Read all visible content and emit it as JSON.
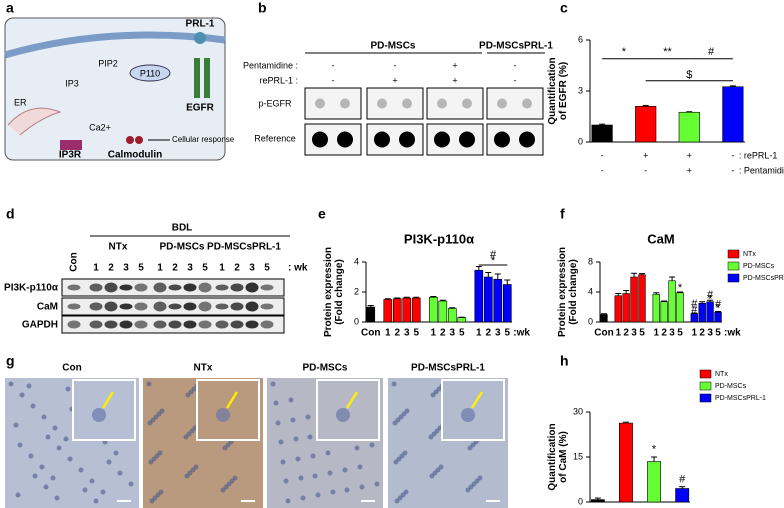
{
  "panel_labels": [
    "a",
    "b",
    "c",
    "d",
    "e",
    "f",
    "g",
    "h"
  ],
  "diagram_a": {
    "labels": [
      "PRL-1",
      "P110",
      "EGFR",
      "PIP2",
      "IP3",
      "ER",
      "Ca2+",
      "IP3R",
      "Calmodulin",
      "Cellular response"
    ]
  },
  "blot_b": {
    "groups": [
      "PD-MSCs",
      "PD-MSCsPRL-1"
    ],
    "conditions": [
      {
        "name": "Pentamidine :",
        "signs": [
          "-",
          "-",
          "+",
          "-"
        ]
      },
      {
        "name": "rePRL-1 :",
        "signs": [
          "-",
          "+",
          "+",
          "-"
        ]
      }
    ],
    "rows": [
      "p-EGFR",
      "Reference"
    ]
  },
  "blot_d": {
    "header": "BDL",
    "con": "Con",
    "groups": [
      "NTx",
      "PD-MSCs",
      "PD-MSCsPRL-1"
    ],
    "lanes": [
      "1",
      "2",
      "3",
      "5"
    ],
    "unit": ": wk",
    "rows": [
      "PI3K-p110α",
      "CaM",
      "GAPDH"
    ]
  },
  "images_g": {
    "titles": [
      "Con",
      "NTx",
      "PD-MSCs",
      "PD-MSCsPRL-1"
    ]
  },
  "chart_data": [
    {
      "type": "bar",
      "ylabel": [
        "Quantification",
        "of EGFR (%)"
      ],
      "ylim": [
        0,
        6
      ],
      "yticks": [
        0,
        3,
        6
      ],
      "values": [
        1.0,
        2.1,
        1.75,
        3.25
      ],
      "errors": [
        0.05,
        0.05,
        0.03,
        0.05
      ],
      "colors": [
        "#000000",
        "#ff0000",
        "#66ff33",
        "#0000ff"
      ],
      "conditions": [
        {
          "name": ": rePRL-1",
          "signs": [
            "-",
            "+",
            "+",
            "-"
          ]
        },
        {
          "name": ": Pentamidine",
          "signs": [
            "-",
            "-",
            "+",
            "-"
          ]
        }
      ],
      "annotations": [
        "*",
        "**",
        "#",
        "$"
      ]
    },
    {
      "type": "bar",
      "title": "PI3K-p110α",
      "ylabel": [
        "Protein expression",
        "(Fold change)"
      ],
      "ylim": [
        0,
        4
      ],
      "yticks": [
        0,
        2,
        4
      ],
      "categories": [
        "Con",
        "1",
        "2",
        "3",
        "5",
        "1",
        "2",
        "3",
        "5",
        "1",
        "2",
        "3",
        "5"
      ],
      "x_unit": ":wk",
      "values": [
        1.0,
        1.5,
        1.55,
        1.6,
        1.6,
        1.65,
        1.4,
        0.9,
        0.3,
        3.45,
        3.0,
        2.85,
        2.5
      ],
      "errors": [
        0.1,
        0.05,
        0.05,
        0.05,
        0.05,
        0.05,
        0.05,
        0.05,
        0.02,
        0.25,
        0.3,
        0.35,
        0.3
      ],
      "colors": [
        "#000000",
        "#ff0000",
        "#ff0000",
        "#ff0000",
        "#ff0000",
        "#66ff33",
        "#66ff33",
        "#66ff33",
        "#66ff33",
        "#0000ff",
        "#0000ff",
        "#0000ff",
        "#0000ff"
      ],
      "annotations": [
        "#",
        "*"
      ]
    },
    {
      "type": "bar",
      "title": "CaM",
      "ylabel": [
        "Protein expression",
        "(Fold change)"
      ],
      "ylim": [
        0,
        8
      ],
      "yticks": [
        0,
        4,
        8
      ],
      "categories": [
        "Con",
        "1",
        "2",
        "3",
        "5",
        "1",
        "2",
        "3",
        "5",
        "1",
        "2",
        "3",
        "5"
      ],
      "x_unit": ":wk",
      "values": [
        1.0,
        3.5,
        3.8,
        6.0,
        6.3,
        3.7,
        2.7,
        5.5,
        3.9,
        1.1,
        2.5,
        2.7,
        1.3
      ],
      "errors": [
        0.1,
        0.3,
        0.4,
        0.5,
        0.15,
        0.2,
        0.1,
        0.5,
        0.1,
        0.1,
        0.2,
        0.2,
        0.1
      ],
      "colors": [
        "#000000",
        "#ff0000",
        "#ff0000",
        "#ff0000",
        "#ff0000",
        "#66ff33",
        "#66ff33",
        "#66ff33",
        "#66ff33",
        "#0000ff",
        "#0000ff",
        "#0000ff",
        "#0000ff"
      ],
      "legend": [
        {
          "name": "NTx",
          "color": "#ff0000"
        },
        {
          "name": "PD-MSCs",
          "color": "#66ff33"
        },
        {
          "name": "PD-MSCsPRL-1",
          "color": "#0000ff"
        }
      ],
      "annotations": [
        "*",
        "#",
        "#",
        "#",
        "*",
        "#",
        "*"
      ]
    },
    {
      "type": "bar",
      "ylabel": [
        "Quantification",
        "of CaM (%)"
      ],
      "ylim": [
        0,
        30
      ],
      "yticks": [
        0,
        15,
        30
      ],
      "values": [
        0.8,
        26.3,
        13.5,
        4.5
      ],
      "errors": [
        0.5,
        0.3,
        1.5,
        0.6
      ],
      "colors": [
        "#000000",
        "#ff0000",
        "#66ff33",
        "#0000ff"
      ],
      "legend": [
        {
          "name": "NTx",
          "color": "#ff0000"
        },
        {
          "name": "PD-MSCs",
          "color": "#66ff33"
        },
        {
          "name": "PD-MSCsPRL-1",
          "color": "#0000ff"
        }
      ],
      "annotations": [
        "*",
        "#"
      ]
    }
  ]
}
